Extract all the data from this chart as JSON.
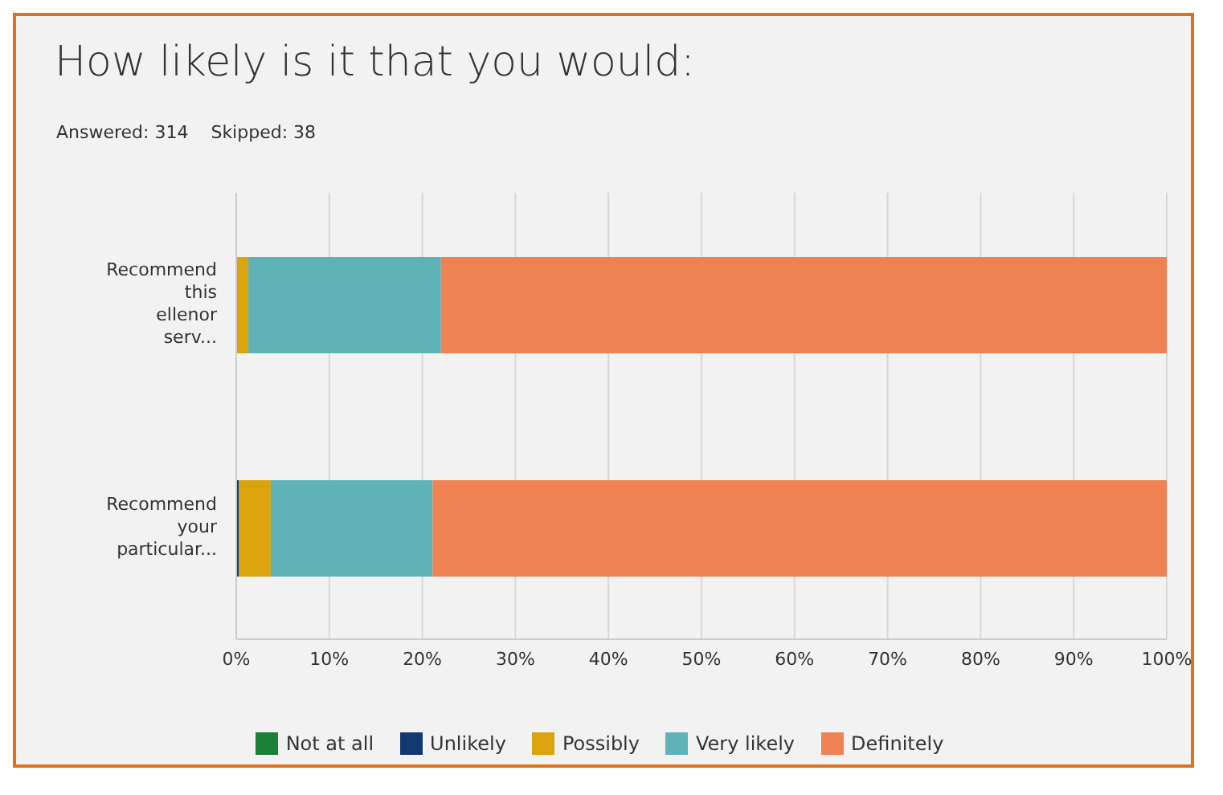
{
  "chart_data": {
    "type": "bar",
    "orientation": "horizontal",
    "stacked": true,
    "title": "How likely is it that you would:",
    "subtitle": "Answered: 314    Skipped: 38",
    "categories": [
      "Recommend this ellenor serv...",
      "Recommend your particular..."
    ],
    "series": [
      {
        "name": "Not at all",
        "color": "#1a7f37",
        "values": [
          0,
          0
        ]
      },
      {
        "name": "Unlikely",
        "color": "#123a6e",
        "values": [
          0,
          0.3
        ]
      },
      {
        "name": "Possibly",
        "color": "#dba40c",
        "values": [
          1.3,
          3.4
        ]
      },
      {
        "name": "Very likely",
        "color": "#5fb3b7",
        "values": [
          20.7,
          17.4
        ]
      },
      {
        "name": "Definitely",
        "color": "#ee8253",
        "values": [
          78,
          78.9
        ]
      }
    ],
    "xlim": [
      0,
      100
    ],
    "xticks": [
      {
        "value": 0,
        "label": "0%"
      },
      {
        "value": 10,
        "label": "10%"
      },
      {
        "value": 20,
        "label": "20%"
      },
      {
        "value": 30,
        "label": "30%"
      },
      {
        "value": 40,
        "label": "40%"
      },
      {
        "value": 50,
        "label": "50%"
      },
      {
        "value": 60,
        "label": "60%"
      },
      {
        "value": 70,
        "label": "70%"
      },
      {
        "value": 80,
        "label": "80%"
      },
      {
        "value": 90,
        "label": "90%"
      },
      {
        "value": 100,
        "label": "100%"
      }
    ],
    "grid": "x",
    "legend": "bottom"
  }
}
